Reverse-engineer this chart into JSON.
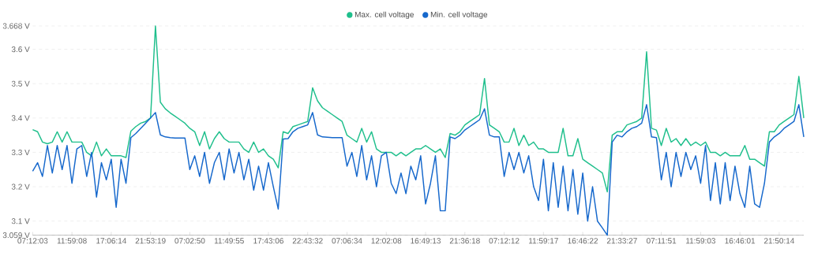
{
  "chart_data": {
    "type": "line",
    "categories": [
      "07:12:03",
      null,
      null,
      null,
      null,
      null,
      null,
      null,
      "11:59:08",
      null,
      null,
      null,
      null,
      null,
      null,
      null,
      "17:06:14",
      null,
      null,
      null,
      null,
      null,
      null,
      null,
      "21:53:19",
      null,
      null,
      null,
      null,
      null,
      null,
      null,
      "07:02:50",
      null,
      null,
      null,
      null,
      null,
      null,
      null,
      "11:49:55",
      null,
      null,
      null,
      null,
      null,
      null,
      null,
      "17:43:06",
      null,
      null,
      null,
      null,
      null,
      null,
      null,
      "22:43:32",
      null,
      null,
      null,
      null,
      null,
      null,
      null,
      "07:06:34",
      null,
      null,
      null,
      null,
      null,
      null,
      null,
      "12:02:08",
      null,
      null,
      null,
      null,
      null,
      null,
      null,
      "16:49:13",
      null,
      null,
      null,
      null,
      null,
      null,
      null,
      "21:36:18",
      null,
      null,
      null,
      null,
      null,
      null,
      null,
      "07:12:12",
      null,
      null,
      null,
      null,
      null,
      null,
      null,
      "11:59:17",
      null,
      null,
      null,
      null,
      null,
      null,
      null,
      "16:46:22",
      null,
      null,
      null,
      null,
      null,
      null,
      null,
      "21:33:27",
      null,
      null,
      null,
      null,
      null,
      null,
      null,
      "07:11:51",
      null,
      null,
      null,
      null,
      null,
      null,
      null,
      "11:59:03",
      null,
      null,
      null,
      null,
      null,
      null,
      null,
      "16:46:01",
      null,
      null,
      null,
      null,
      null,
      null,
      null,
      "21:50:14",
      null,
      null,
      null,
      null,
      null
    ],
    "series": [
      {
        "name": "Max. cell voltage",
        "color": "#1fbf8c",
        "values": [
          3.366,
          3.36,
          3.33,
          3.325,
          3.33,
          3.36,
          3.33,
          3.36,
          3.33,
          3.33,
          3.33,
          3.3,
          3.29,
          3.33,
          3.29,
          3.31,
          3.29,
          3.29,
          3.29,
          3.285,
          3.362,
          3.375,
          3.385,
          3.39,
          3.4,
          3.668,
          3.446,
          3.427,
          3.415,
          3.405,
          3.395,
          3.385,
          3.37,
          3.36,
          3.32,
          3.36,
          3.31,
          3.34,
          3.36,
          3.34,
          3.33,
          3.33,
          3.33,
          3.31,
          3.3,
          3.33,
          3.3,
          3.31,
          3.29,
          3.28,
          3.255,
          3.36,
          3.355,
          3.375,
          3.38,
          3.385,
          3.39,
          3.488,
          3.45,
          3.43,
          3.42,
          3.41,
          3.4,
          3.39,
          3.35,
          3.34,
          3.33,
          3.37,
          3.33,
          3.36,
          3.31,
          3.3,
          3.3,
          3.3,
          3.29,
          3.3,
          3.29,
          3.3,
          3.31,
          3.31,
          3.32,
          3.31,
          3.3,
          3.31,
          3.285,
          3.355,
          3.35,
          3.36,
          3.38,
          3.39,
          3.4,
          3.41,
          3.515,
          3.38,
          3.37,
          3.36,
          3.33,
          3.33,
          3.37,
          3.32,
          3.35,
          3.32,
          3.33,
          3.31,
          3.31,
          3.3,
          3.3,
          3.3,
          3.37,
          3.29,
          3.29,
          3.34,
          3.28,
          3.27,
          3.26,
          3.25,
          3.24,
          3.185,
          3.35,
          3.36,
          3.36,
          3.38,
          3.385,
          3.39,
          3.4,
          3.593,
          3.37,
          3.365,
          3.32,
          3.37,
          3.33,
          3.34,
          3.32,
          3.34,
          3.32,
          3.33,
          3.32,
          3.33,
          3.3,
          3.3,
          3.29,
          3.3,
          3.29,
          3.29,
          3.29,
          3.32,
          3.28,
          3.28,
          3.27,
          3.26,
          3.36,
          3.36,
          3.38,
          3.39,
          3.4,
          3.41,
          3.521,
          3.4
        ]
      },
      {
        "name": "Min. cell voltage",
        "color": "#1668cc",
        "values": [
          3.245,
          3.27,
          3.23,
          3.32,
          3.24,
          3.32,
          3.25,
          3.32,
          3.21,
          3.31,
          3.32,
          3.23,
          3.3,
          3.17,
          3.27,
          3.22,
          3.28,
          3.14,
          3.28,
          3.21,
          3.343,
          3.355,
          3.37,
          3.385,
          3.4,
          3.416,
          3.351,
          3.345,
          3.343,
          3.342,
          3.342,
          3.342,
          3.25,
          3.29,
          3.23,
          3.3,
          3.21,
          3.27,
          3.3,
          3.22,
          3.31,
          3.24,
          3.3,
          3.22,
          3.28,
          3.19,
          3.26,
          3.19,
          3.27,
          3.2,
          3.135,
          3.339,
          3.34,
          3.36,
          3.37,
          3.375,
          3.38,
          3.416,
          3.351,
          3.345,
          3.344,
          3.343,
          3.343,
          3.343,
          3.26,
          3.3,
          3.23,
          3.32,
          3.22,
          3.29,
          3.2,
          3.29,
          3.3,
          3.21,
          3.18,
          3.24,
          3.18,
          3.26,
          3.22,
          3.29,
          3.15,
          3.21,
          3.29,
          3.13,
          3.13,
          3.345,
          3.34,
          3.35,
          3.365,
          3.375,
          3.385,
          3.395,
          3.427,
          3.35,
          3.345,
          3.345,
          3.23,
          3.3,
          3.25,
          3.3,
          3.24,
          3.29,
          3.2,
          3.16,
          3.28,
          3.13,
          3.27,
          3.14,
          3.26,
          3.13,
          3.25,
          3.12,
          3.24,
          3.1,
          3.2,
          3.1,
          3.08,
          3.059,
          3.33,
          3.35,
          3.345,
          3.36,
          3.37,
          3.375,
          3.385,
          3.439,
          3.345,
          3.343,
          3.22,
          3.3,
          3.2,
          3.3,
          3.23,
          3.3,
          3.25,
          3.29,
          3.21,
          3.32,
          3.16,
          3.27,
          3.15,
          3.27,
          3.16,
          3.26,
          3.18,
          3.14,
          3.26,
          3.15,
          3.14,
          3.21,
          3.33,
          3.345,
          3.355,
          3.37,
          3.38,
          3.39,
          3.439,
          3.345
        ]
      }
    ],
    "ylim": [
      3.059,
      3.668
    ],
    "yticks": [
      {
        "value": 3.059,
        "label": "3.059 V"
      },
      {
        "value": 3.1,
        "label": "3.1 V"
      },
      {
        "value": 3.2,
        "label": "3.2 V"
      },
      {
        "value": 3.3,
        "label": "3.3 V"
      },
      {
        "value": 3.4,
        "label": "3.4 V"
      },
      {
        "value": 3.5,
        "label": "3.5 V"
      },
      {
        "value": 3.6,
        "label": "3.6 V"
      },
      {
        "value": 3.668,
        "label": "3.668 V"
      }
    ],
    "grid": "y",
    "legend": "top"
  }
}
